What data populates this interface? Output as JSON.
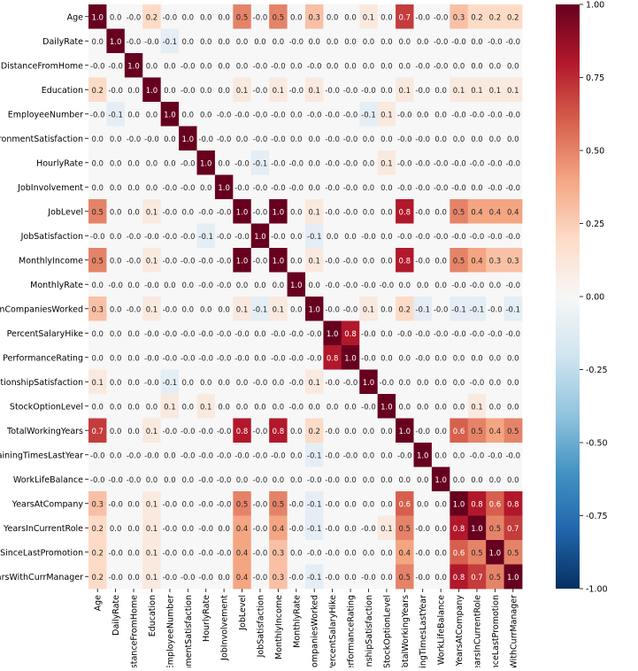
{
  "chart_data": {
    "type": "heatmap",
    "title": "",
    "labels": [
      "Age",
      "DailyRate",
      "DistanceFromHome",
      "Education",
      "EmployeeNumber",
      "EnvironmentSatisfaction",
      "HourlyRate",
      "JobInvolvement",
      "JobLevel",
      "JobSatisfaction",
      "MonthlyIncome",
      "MonthlyRate",
      "NumCompaniesWorked",
      "PercentSalaryHike",
      "PerformanceRating",
      "RelationshipSatisfaction",
      "StockOptionLevel",
      "TotalWorkingYears",
      "TrainingTimesLastYear",
      "WorkLifeBalance",
      "YearsAtCompany",
      "YearsInCurrentRole",
      "YearsSinceLastPromotion",
      "YearsWithCurrManager"
    ],
    "values": [
      [
        1.0,
        0.0,
        -0.0,
        0.2,
        -0.0,
        0.0,
        0.0,
        0.0,
        0.5,
        -0.0,
        0.5,
        0.0,
        0.3,
        0.0,
        0.0,
        0.1,
        0.0,
        0.7,
        -0.0,
        -0.0,
        0.3,
        0.2,
        0.2,
        0.2
      ],
      [
        0.0,
        1.0,
        -0.0,
        -0.0,
        -0.1,
        0.0,
        0.0,
        0.0,
        0.0,
        0.0,
        0.0,
        -0.0,
        0.0,
        0.0,
        0.0,
        0.0,
        0.0,
        0.0,
        0.0,
        -0.0,
        -0.0,
        0.0,
        -0.0,
        -0.0
      ],
      [
        -0.0,
        -0.0,
        1.0,
        0.0,
        0.0,
        -0.0,
        0.0,
        0.0,
        0.0,
        -0.0,
        -0.0,
        0.0,
        -0.0,
        0.0,
        0.0,
        0.0,
        0.0,
        0.0,
        -0.0,
        -0.0,
        0.0,
        0.0,
        0.0,
        0.0
      ],
      [
        0.2,
        -0.0,
        0.0,
        1.0,
        0.0,
        -0.0,
        0.0,
        0.0,
        0.1,
        -0.0,
        0.1,
        -0.0,
        0.1,
        -0.0,
        -0.0,
        -0.0,
        0.0,
        0.1,
        -0.0,
        0.0,
        0.1,
        0.1,
        0.1,
        0.1
      ],
      [
        -0.0,
        -0.1,
        0.0,
        0.0,
        1.0,
        0.0,
        0.0,
        -0.0,
        -0.0,
        -0.0,
        -0.0,
        0.0,
        -0.0,
        -0.0,
        -0.0,
        -0.1,
        0.1,
        -0.0,
        0.0,
        0.0,
        -0.0,
        -0.0,
        -0.0,
        -0.0
      ],
      [
        0.0,
        0.0,
        -0.0,
        -0.0,
        0.0,
        1.0,
        -0.0,
        -0.0,
        0.0,
        -0.0,
        -0.0,
        0.0,
        0.0,
        -0.0,
        -0.0,
        0.0,
        0.0,
        -0.0,
        -0.0,
        0.0,
        0.0,
        0.0,
        0.0,
        0.0
      ],
      [
        0.0,
        0.0,
        0.0,
        0.0,
        0.0,
        -0.0,
        1.0,
        0.0,
        -0.0,
        -0.1,
        -0.0,
        -0.0,
        0.0,
        -0.0,
        -0.0,
        0.0,
        0.1,
        -0.0,
        -0.0,
        -0.0,
        -0.0,
        -0.0,
        -0.0,
        -0.0
      ],
      [
        0.0,
        0.0,
        0.0,
        0.0,
        -0.0,
        -0.0,
        0.0,
        1.0,
        -0.0,
        -0.0,
        -0.0,
        -0.0,
        0.0,
        -0.0,
        -0.0,
        0.0,
        0.0,
        -0.0,
        -0.0,
        -0.0,
        -0.0,
        0.0,
        -0.0,
        -0.0
      ],
      [
        0.5,
        0.0,
        0.0,
        0.1,
        -0.0,
        0.0,
        -0.0,
        -0.0,
        1.0,
        -0.0,
        1.0,
        0.0,
        0.1,
        -0.0,
        -0.0,
        0.0,
        0.0,
        0.8,
        -0.0,
        0.0,
        0.5,
        0.4,
        0.4,
        0.4
      ],
      [
        -0.0,
        0.0,
        -0.0,
        -0.0,
        -0.0,
        -0.0,
        -0.1,
        -0.0,
        -0.0,
        1.0,
        -0.0,
        0.0,
        -0.1,
        0.0,
        0.0,
        -0.0,
        0.0,
        -0.0,
        -0.0,
        -0.0,
        -0.0,
        -0.0,
        -0.0,
        -0.0
      ],
      [
        0.5,
        0.0,
        -0.0,
        0.1,
        -0.0,
        -0.0,
        -0.0,
        -0.0,
        1.0,
        -0.0,
        1.0,
        0.0,
        0.1,
        -0.0,
        -0.0,
        0.0,
        0.0,
        0.8,
        -0.0,
        0.0,
        0.5,
        0.4,
        0.3,
        0.3
      ],
      [
        0.0,
        -0.0,
        0.0,
        -0.0,
        0.0,
        0.0,
        -0.0,
        -0.0,
        0.0,
        0.0,
        0.0,
        1.0,
        0.0,
        -0.0,
        -0.0,
        -0.0,
        -0.0,
        0.0,
        0.0,
        0.0,
        -0.0,
        -0.0,
        0.0,
        -0.0
      ],
      [
        0.3,
        0.0,
        -0.0,
        0.1,
        -0.0,
        0.0,
        0.0,
        0.0,
        0.1,
        -0.1,
        0.1,
        0.0,
        1.0,
        -0.0,
        -0.0,
        0.1,
        0.0,
        0.2,
        -0.1,
        -0.0,
        -0.1,
        -0.1,
        -0.0,
        -0.1
      ],
      [
        0.0,
        0.0,
        0.0,
        -0.0,
        -0.0,
        -0.0,
        -0.0,
        -0.0,
        -0.0,
        0.0,
        -0.0,
        -0.0,
        -0.0,
        1.0,
        0.8,
        -0.0,
        0.0,
        -0.0,
        -0.0,
        -0.0,
        -0.0,
        -0.0,
        -0.0,
        -0.0
      ],
      [
        0.0,
        0.0,
        0.0,
        -0.0,
        -0.0,
        -0.0,
        -0.0,
        -0.0,
        -0.0,
        0.0,
        -0.0,
        -0.0,
        -0.0,
        0.8,
        1.0,
        -0.0,
        0.0,
        0.0,
        -0.0,
        0.0,
        0.0,
        0.0,
        0.0,
        0.0
      ],
      [
        0.1,
        0.0,
        0.0,
        -0.0,
        -0.1,
        0.0,
        0.0,
        0.0,
        0.0,
        -0.0,
        0.0,
        -0.0,
        0.1,
        -0.0,
        -0.0,
        1.0,
        -0.0,
        0.0,
        0.0,
        0.0,
        0.0,
        -0.0,
        0.0,
        0.0
      ],
      [
        0.0,
        0.0,
        0.0,
        0.0,
        0.1,
        0.0,
        0.1,
        0.0,
        0.0,
        0.0,
        0.0,
        -0.0,
        0.0,
        0.0,
        0.0,
        -0.0,
        1.0,
        0.0,
        0.0,
        0.0,
        0.0,
        0.1,
        0.0,
        0.0
      ],
      [
        0.7,
        0.0,
        0.0,
        0.1,
        -0.0,
        -0.0,
        -0.0,
        -0.0,
        0.8,
        -0.0,
        0.8,
        0.0,
        0.2,
        -0.0,
        0.0,
        0.0,
        0.0,
        1.0,
        -0.0,
        0.0,
        0.6,
        0.5,
        0.4,
        0.5
      ],
      [
        -0.0,
        0.0,
        -0.0,
        -0.0,
        0.0,
        -0.0,
        -0.0,
        -0.0,
        -0.0,
        -0.0,
        -0.0,
        0.0,
        -0.1,
        -0.0,
        -0.0,
        0.0,
        0.0,
        -0.0,
        1.0,
        0.0,
        0.0,
        -0.0,
        -0.0,
        -0.0
      ],
      [
        -0.0,
        -0.0,
        -0.0,
        0.0,
        0.0,
        0.0,
        -0.0,
        -0.0,
        0.0,
        -0.0,
        0.0,
        0.0,
        -0.0,
        -0.0,
        0.0,
        0.0,
        0.0,
        0.0,
        0.0,
        1.0,
        0.0,
        0.0,
        0.0,
        0.0
      ],
      [
        0.3,
        -0.0,
        0.0,
        0.1,
        -0.0,
        0.0,
        -0.0,
        -0.0,
        0.5,
        -0.0,
        0.5,
        -0.0,
        -0.1,
        -0.0,
        0.0,
        0.0,
        0.0,
        0.6,
        0.0,
        0.0,
        1.0,
        0.8,
        0.6,
        0.8
      ],
      [
        0.2,
        0.0,
        0.0,
        0.1,
        -0.0,
        0.0,
        -0.0,
        0.0,
        0.4,
        -0.0,
        0.4,
        -0.0,
        -0.1,
        -0.0,
        0.0,
        -0.0,
        0.1,
        0.5,
        -0.0,
        0.0,
        0.8,
        1.0,
        0.5,
        0.7
      ],
      [
        0.2,
        -0.0,
        0.0,
        0.1,
        -0.0,
        0.0,
        -0.0,
        -0.0,
        0.4,
        -0.0,
        0.3,
        0.0,
        -0.0,
        -0.0,
        0.0,
        0.0,
        0.0,
        0.4,
        -0.0,
        0.0,
        0.6,
        0.5,
        1.0,
        0.5
      ],
      [
        0.2,
        -0.0,
        0.0,
        0.1,
        -0.0,
        -0.0,
        -0.0,
        0.0,
        0.4,
        -0.0,
        0.3,
        -0.0,
        -0.1,
        -0.0,
        0.0,
        -0.0,
        0.0,
        0.5,
        -0.0,
        0.0,
        0.8,
        0.7,
        0.5,
        1.0
      ]
    ],
    "colormap": "RdBu_r",
    "vmin": -1.0,
    "vmax": 1.0,
    "colorbar_ticks": [
      "1.00",
      "0.75",
      "0.50",
      "0.25",
      "0.00",
      "-0.25",
      "-0.50",
      "-0.75",
      "-1.00"
    ],
    "colorbar_tick_values": [
      1.0,
      0.75,
      0.5,
      0.25,
      0.0,
      -0.25,
      -0.5,
      -0.75,
      -1.0
    ],
    "annotation_format": "0.1f"
  }
}
